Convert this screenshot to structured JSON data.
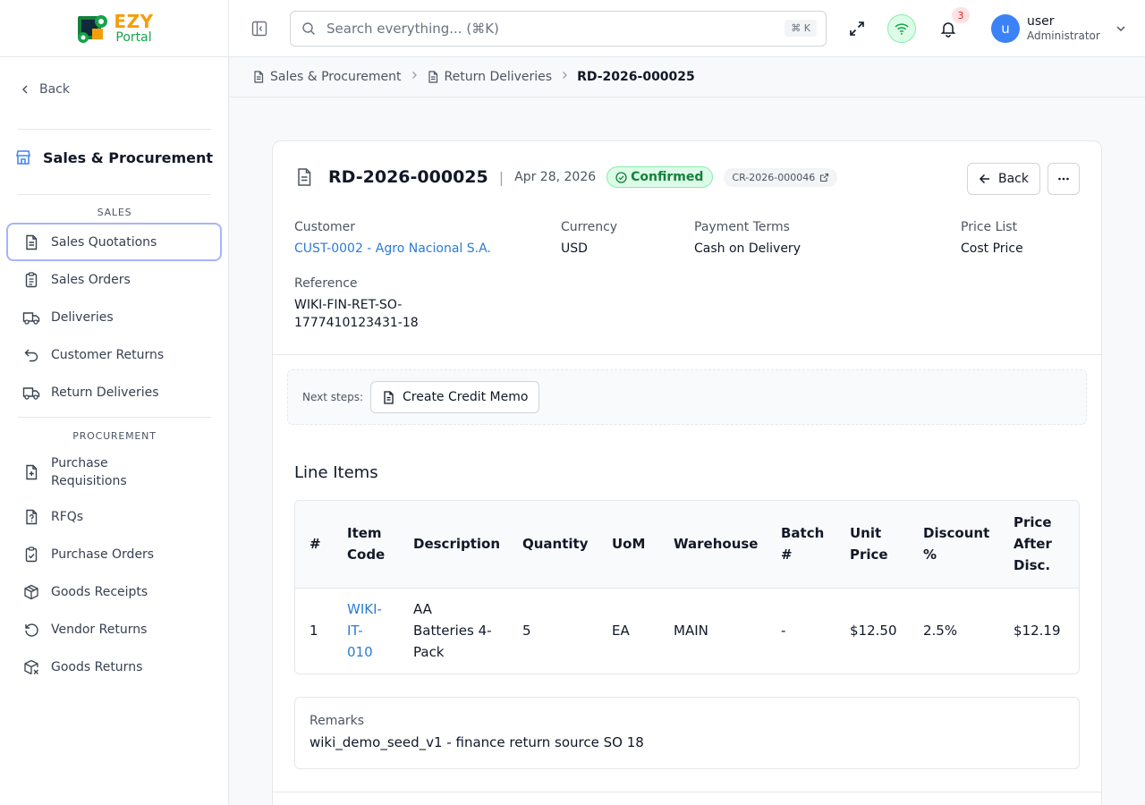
{
  "brand": {
    "line1": "EZY",
    "line2": "Portal"
  },
  "sidebar": {
    "back_label": "Back",
    "module_title": "Sales & Procurement",
    "sections": {
      "sales": "SALES",
      "procurement": "PROCUREMENT"
    },
    "items": [
      {
        "label": "Sales Quotations",
        "icon": "file-text-icon",
        "active": true
      },
      {
        "label": "Sales Orders",
        "icon": "clipboard-list-icon"
      },
      {
        "label": "Deliveries",
        "icon": "truck-icon"
      },
      {
        "label": "Customer Returns",
        "icon": "undo-arrow-icon"
      },
      {
        "label": "Return Deliveries",
        "icon": "truck-icon"
      },
      {
        "label": "Purchase Requisitions",
        "icon": "file-plus-icon"
      },
      {
        "label": "RFQs",
        "icon": "file-question-icon"
      },
      {
        "label": "Purchase Orders",
        "icon": "clipboard-check-icon"
      },
      {
        "label": "Goods Receipts",
        "icon": "package-icon"
      },
      {
        "label": "Vendor Returns",
        "icon": "rotate-ccw-icon"
      },
      {
        "label": "Goods Returns",
        "icon": "package-x-icon"
      }
    ]
  },
  "header": {
    "search_placeholder": "Search everything... (⌘K)",
    "search_shortcut": "⌘ K",
    "notification_count": "3",
    "user_initial": "u",
    "user_name": "user",
    "user_role": "Administrator"
  },
  "breadcrumb": [
    "Sales & Procurement",
    "Return Deliveries",
    "RD-2026-000025"
  ],
  "document": {
    "id": "RD-2026-000025",
    "date": "Apr 28, 2026",
    "status": "Confirmed",
    "source_ref": "CR-2026-000046",
    "back_label": "Back",
    "fields": {
      "customer_label": "Customer",
      "customer_value": "CUST-0002 - Agro Nacional S.A.",
      "currency_label": "Currency",
      "currency_value": "USD",
      "payment_terms_label": "Payment Terms",
      "payment_terms_value": "Cash on Delivery",
      "price_list_label": "Price List",
      "price_list_value": "Cost Price",
      "reference_label": "Reference",
      "reference_value_line1": "WIKI-FIN-RET-SO-",
      "reference_value_line2": "1777410123431-18"
    },
    "next_steps_label": "Next steps:",
    "next_step_action": "Create Credit Memo",
    "line_items_title": "Line Items",
    "columns": [
      {
        "l1": "#",
        "l2": "",
        "l3": ""
      },
      {
        "l1": "Item",
        "l2": "Code",
        "l3": ""
      },
      {
        "l1": "Description",
        "l2": "",
        "l3": ""
      },
      {
        "l1": "Quantity",
        "l2": "",
        "l3": ""
      },
      {
        "l1": "UoM",
        "l2": "",
        "l3": ""
      },
      {
        "l1": "Warehouse",
        "l2": "",
        "l3": ""
      },
      {
        "l1": "Batch",
        "l2": "#",
        "l3": ""
      },
      {
        "l1": "Unit",
        "l2": "Price",
        "l3": ""
      },
      {
        "l1": "Discount",
        "l2": "%",
        "l3": ""
      },
      {
        "l1": "Price",
        "l2": "After",
        "l3": "Disc."
      }
    ],
    "rows": [
      {
        "num": "1",
        "item_l1": "WIKI-",
        "item_l2": "IT-",
        "item_l3": "010",
        "desc_l1": "AA",
        "desc_l2": "Batteries 4-",
        "desc_l3": "Pack",
        "qty": "5",
        "uom": "EA",
        "warehouse": "MAIN",
        "batch": "-",
        "unit_price": "$12.50",
        "discount": "2.5%",
        "price_after": "$12.19"
      }
    ],
    "remarks_label": "Remarks",
    "remarks_value": "wiki_demo_seed_v1 - finance return source SO 18"
  }
}
